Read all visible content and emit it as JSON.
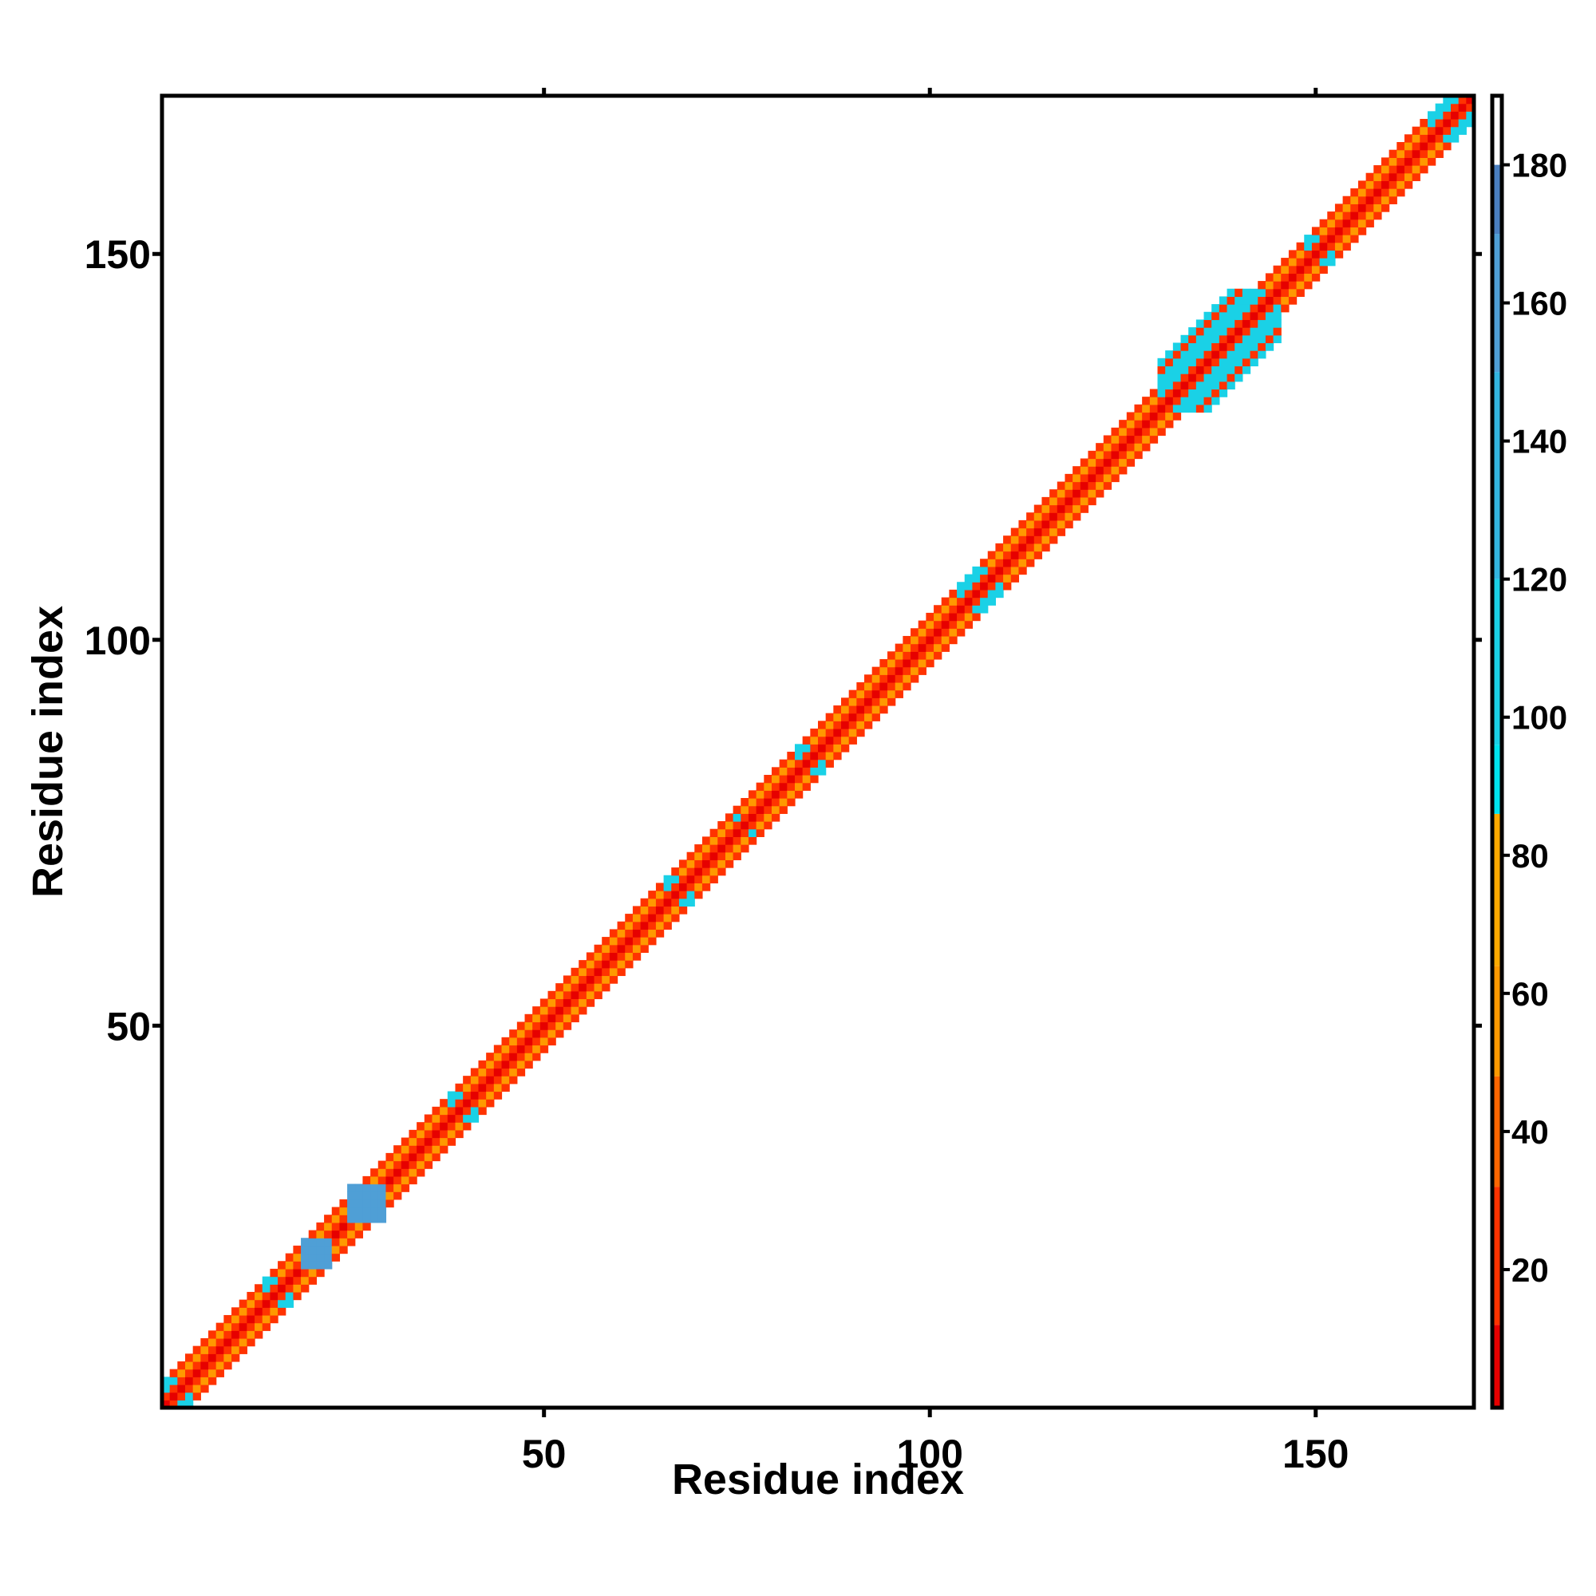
{
  "chart_data": {
    "type": "heatmap",
    "title": "",
    "xlabel": "Residue index",
    "ylabel": "Residue index",
    "n_residues": 170,
    "xlim": [
      1,
      170
    ],
    "ylim": [
      1,
      170
    ],
    "x_ticks": [
      50,
      100,
      150
    ],
    "y_ticks": [
      50,
      100,
      150
    ],
    "grid": false,
    "diagonal_pattern": {
      "description": "values on and near the main diagonal, cells at |i-j|<=3",
      "by_offset": [
        {
          "offset": 0,
          "value": 0
        },
        {
          "offset": 1,
          "value": 15
        },
        {
          "offset": 2,
          "value": 50
        },
        {
          "offset": 3,
          "value": 25
        }
      ],
      "high_segments": [
        {
          "start": 1,
          "end": 4,
          "value": 100
        },
        {
          "start": 14,
          "end": 17,
          "value": 110
        },
        {
          "start": 38,
          "end": 41,
          "value": 100
        },
        {
          "start": 66,
          "end": 69,
          "value": 100
        },
        {
          "start": 75,
          "end": 77,
          "value": 100
        },
        {
          "start": 83,
          "end": 86,
          "value": 100
        },
        {
          "start": 104,
          "end": 109,
          "value": 105
        },
        {
          "start": 130,
          "end": 145,
          "value": 105
        },
        {
          "start": 149,
          "end": 152,
          "value": 110
        },
        {
          "start": 165,
          "end": 170,
          "value": 100
        }
      ],
      "wide_segment": {
        "start": 130,
        "end": 145,
        "max_offset": 6
      }
    },
    "features": [
      {
        "residues": [
          19,
          22
        ],
        "partner": [
          22,
          19
        ],
        "value": 160
      },
      {
        "residues": [
          25,
          29
        ],
        "partner": [
          25,
          29
        ],
        "value": 150
      }
    ],
    "colorbar": {
      "min": 0,
      "max": 190,
      "ticks": [
        20,
        40,
        60,
        80,
        100,
        120,
        140,
        160,
        180
      ],
      "bands": [
        {
          "from": 0,
          "to": 12,
          "color": "#e60000"
        },
        {
          "from": 12,
          "to": 32,
          "color": "#ff3300"
        },
        {
          "from": 32,
          "to": 48,
          "color": "#ff6600"
        },
        {
          "from": 48,
          "to": 64,
          "color": "#ff9900"
        },
        {
          "from": 64,
          "to": 86,
          "color": "#ffaa00"
        },
        {
          "from": 86,
          "to": 96,
          "color": "#00e5ee"
        },
        {
          "from": 96,
          "to": 120,
          "color": "#1ad1e6"
        },
        {
          "from": 120,
          "to": 150,
          "color": "#33b5e0"
        },
        {
          "from": 150,
          "to": 170,
          "color": "#4f9fd6"
        },
        {
          "from": 170,
          "to": 180,
          "color": "#4a7fc0"
        },
        {
          "from": 180,
          "to": 190,
          "color": "#ffffff"
        }
      ]
    }
  }
}
